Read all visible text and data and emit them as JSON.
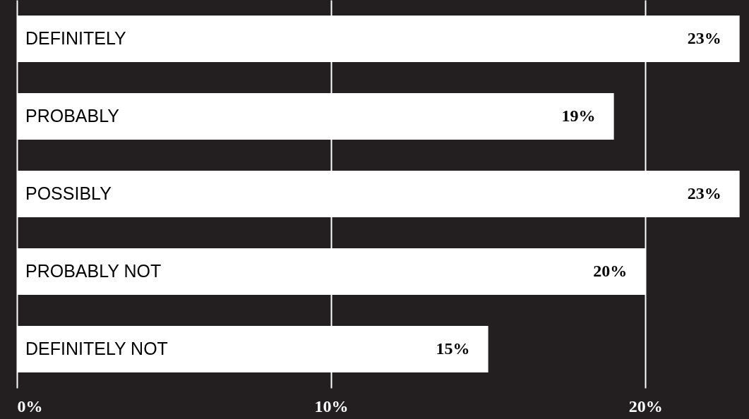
{
  "chart_data": {
    "type": "bar",
    "orientation": "horizontal",
    "categories": [
      "DEFINITELY",
      "PROBABLY",
      "POSSIBLY",
      "PROBABLY NOT",
      "DEFINITELY NOT"
    ],
    "values": [
      23,
      19,
      23,
      20,
      15
    ],
    "value_labels": [
      "23%",
      "19%",
      "23%",
      "20%",
      "15%"
    ],
    "color": "#ffffff",
    "xlim": [
      0,
      23.3
    ],
    "xticks": [
      {
        "value": 0,
        "label": "0%"
      },
      {
        "value": 10,
        "label": "10%"
      },
      {
        "value": 20,
        "label": "20%"
      }
    ],
    "grid": "x",
    "tick_labels": "x"
  }
}
